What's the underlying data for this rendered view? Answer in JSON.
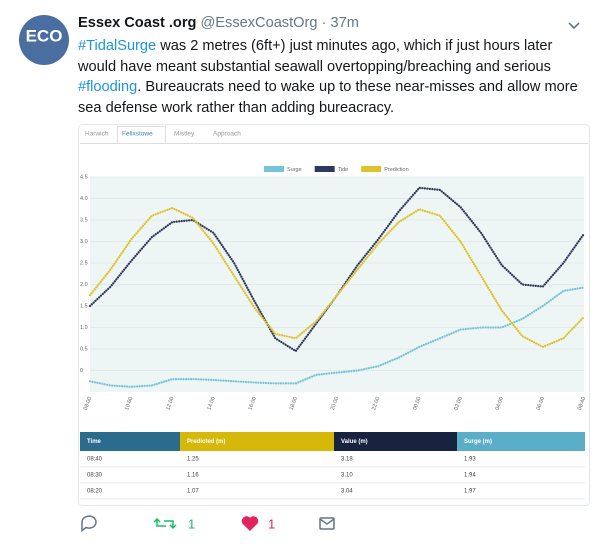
{
  "tweet": {
    "avatar": "ECO",
    "name": "Essex Coast .org",
    "handle": "@EssexCoastOrg · 37m",
    "body": [
      "#TidalSurge",
      " was 2 metres (6ft+) just minutes ago, which if just hours later would have meant substantial seawall overtopping/breaching and serious ",
      "#flooding",
      ". Bureaucrats need to wake up to these near-misses and allow more sea defense work rather than adding bureacracy."
    ],
    "retweets": 1,
    "likes": 1
  },
  "tabs": [
    "Harwich",
    "Felixstowe",
    "Mistley",
    "Approach"
  ],
  "chart_data": {
    "type": "line",
    "categories": [
      "08:00",
      null,
      "10:00",
      null,
      "12:00",
      null,
      "14:00",
      null,
      "16:00",
      null,
      "18:00",
      null,
      "20:00",
      null,
      "22:00",
      null,
      "00:00",
      null,
      "02:00",
      null,
      "04:00",
      null,
      "06:00",
      null,
      "08:40"
    ],
    "series": [
      {
        "name": "Surge",
        "color": "#76c5d6",
        "values": [
          -0.25,
          -0.35,
          -0.38,
          -0.35,
          -0.2,
          -0.2,
          -0.22,
          -0.25,
          -0.28,
          -0.3,
          -0.3,
          -0.1,
          -0.05,
          0.0,
          0.1,
          0.3,
          0.55,
          0.75,
          0.95,
          1.0,
          1.0,
          1.2,
          1.5,
          1.85,
          1.93
        ]
      },
      {
        "name": "Tide",
        "color": "#2e3a5c",
        "values": [
          1.5,
          1.95,
          2.55,
          3.1,
          3.45,
          3.5,
          3.2,
          2.5,
          1.6,
          0.75,
          0.45,
          1.1,
          1.75,
          2.45,
          3.05,
          3.7,
          4.25,
          4.2,
          3.8,
          3.2,
          2.45,
          2.0,
          1.95,
          2.5,
          3.18
        ]
      },
      {
        "name": "Prediction",
        "color": "#e0c22a",
        "values": [
          1.75,
          2.35,
          3.05,
          3.6,
          3.78,
          3.55,
          2.95,
          2.2,
          1.45,
          0.85,
          0.75,
          1.15,
          1.75,
          2.35,
          2.95,
          3.45,
          3.75,
          3.6,
          3.0,
          2.2,
          1.4,
          0.8,
          0.55,
          0.75,
          1.25
        ]
      }
    ],
    "ylim": [
      -0.5,
      4.5
    ],
    "yticks": [
      {
        "value": 0,
        "label": "0"
      },
      0.5,
      {
        "value": 1,
        "label": "1.0"
      },
      1.5,
      {
        "value": 2,
        "label": "2.0"
      },
      2.5,
      {
        "value": 3,
        "label": "3.0"
      },
      3.5,
      {
        "value": 4,
        "label": "4.0"
      },
      4.5
    ],
    "grid": true
  },
  "table": {
    "headers": [
      "Time",
      "Predicted (m)",
      "Value (m)",
      "Surge (m)"
    ],
    "header_colors": [
      "#2b6b8c",
      "#d5b80a",
      "#17233f",
      "#5aaec8"
    ],
    "rows": [
      [
        "08:40",
        "1.25",
        "3.18",
        "1.93"
      ],
      [
        "08:30",
        "1.16",
        "3.10",
        "1.94"
      ],
      [
        "08:20",
        "1.07",
        "3.04",
        "1.97"
      ]
    ]
  }
}
